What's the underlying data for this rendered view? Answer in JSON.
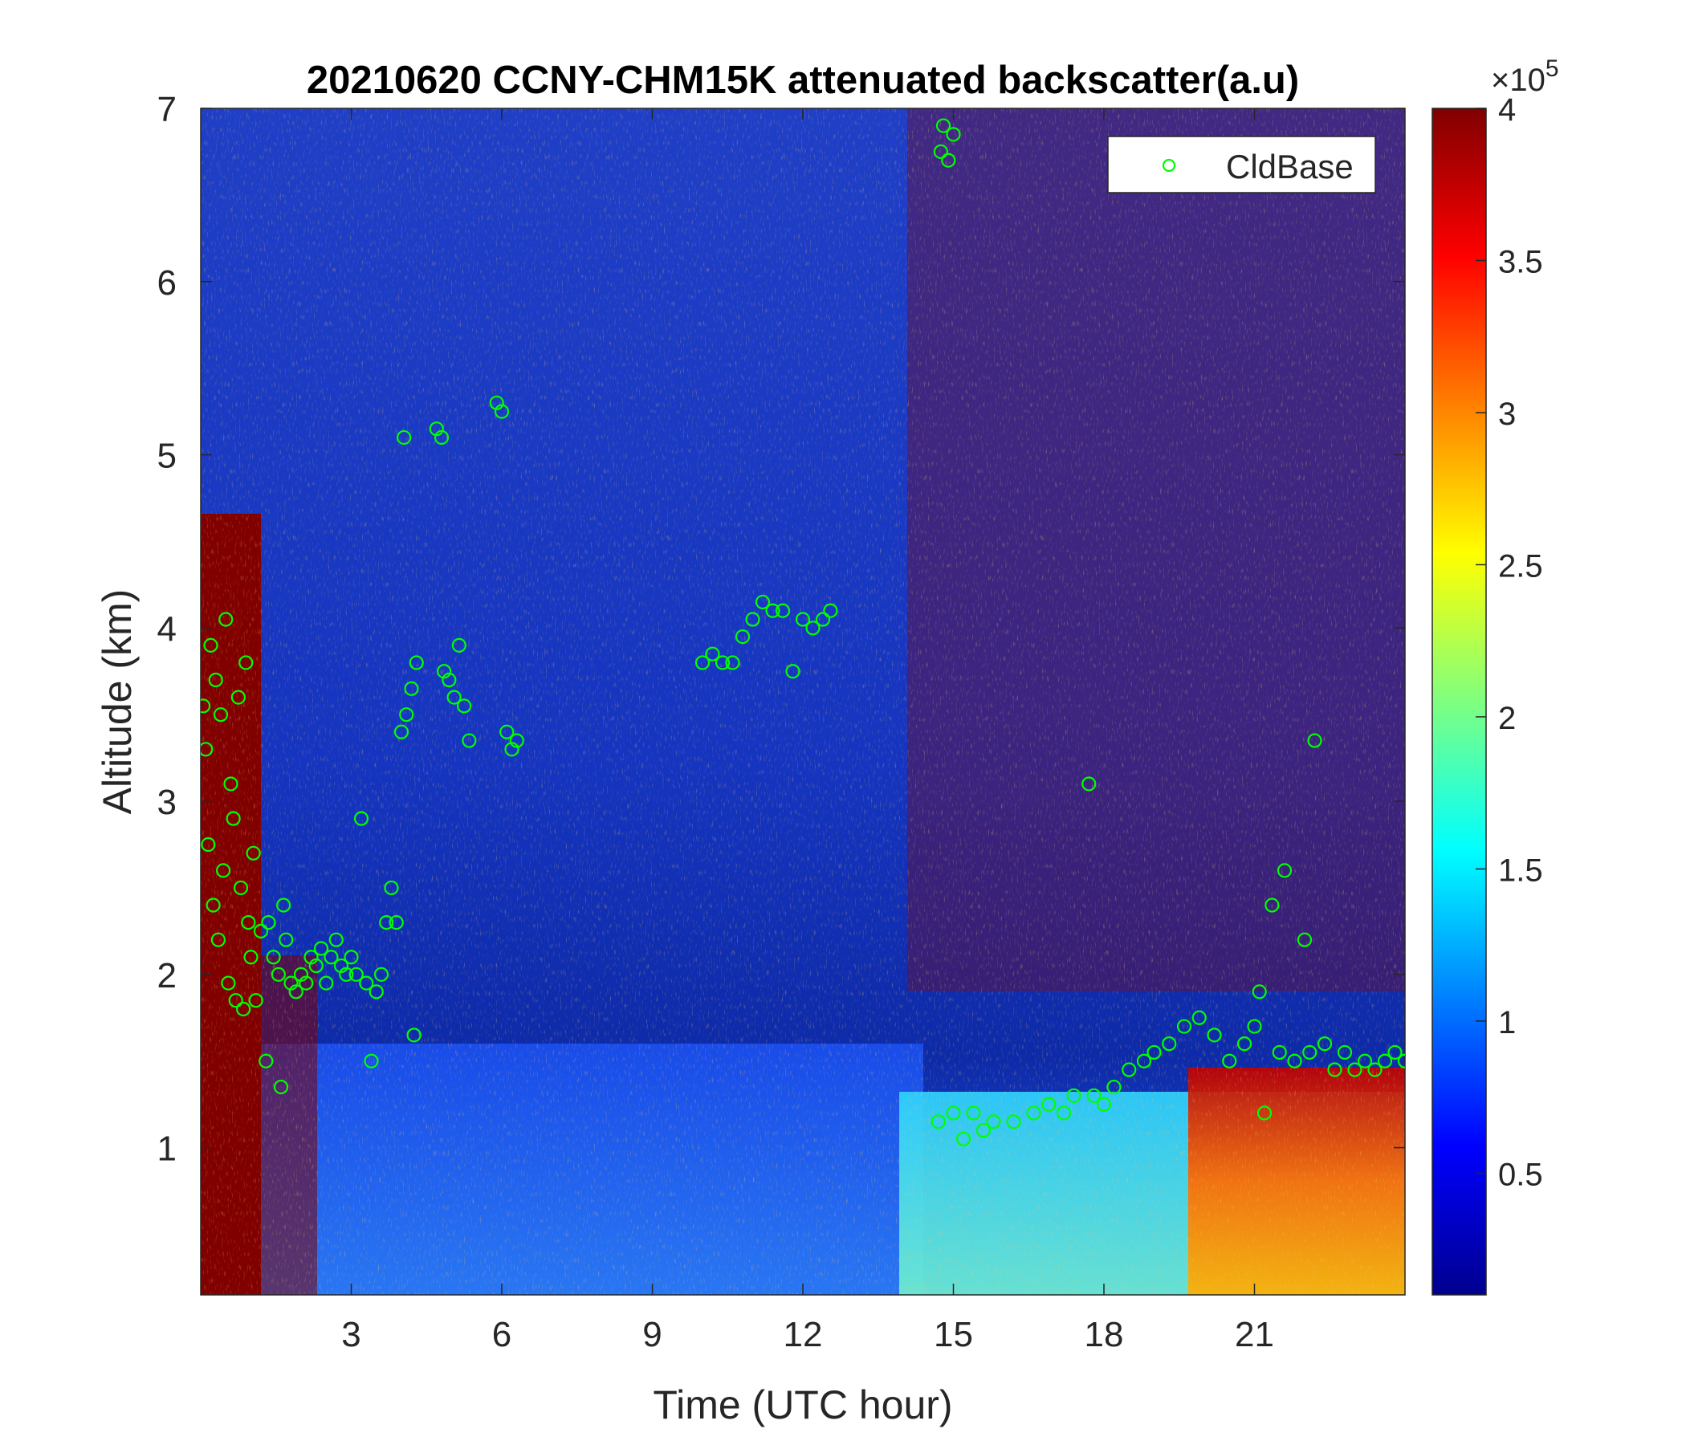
{
  "chart_data": {
    "type": "heatmap",
    "title": "20210620 CCNY-CHM15K attenuated backscatter(a.u)",
    "xlabel": "Time (UTC hour)",
    "ylabel": "Altitude (km)",
    "xlim": [
      0,
      24
    ],
    "ylim": [
      0.15,
      7
    ],
    "x_ticks": [
      3,
      6,
      9,
      12,
      15,
      18,
      21
    ],
    "x_tick_labels": [
      "3",
      "6",
      "9",
      "12",
      "15",
      "18",
      "21"
    ],
    "y_ticks": [
      1,
      2,
      3,
      4,
      5,
      6,
      7
    ],
    "y_tick_labels": [
      "1",
      "2",
      "3",
      "4",
      "5",
      "6",
      "7"
    ],
    "colormap": "jet",
    "colorbar": {
      "range": [
        0.1,
        4
      ],
      "ticks": [
        0.5,
        1,
        1.5,
        2,
        2.5,
        3,
        3.5,
        4
      ],
      "tick_labels": [
        "0.5",
        "1",
        "1.5",
        "2",
        "2.5",
        "3",
        "3.5",
        "4"
      ],
      "multiplier_base": "×10",
      "multiplier_exp": "5"
    },
    "legend": {
      "placement": "top-right",
      "entries": [
        "CldBase"
      ]
    },
    "series": [
      {
        "name": "CldBase",
        "marker": "circle",
        "color": "#00ff00",
        "points": [
          [
            0.05,
            3.55
          ],
          [
            0.1,
            3.3
          ],
          [
            0.15,
            2.75
          ],
          [
            0.2,
            3.9
          ],
          [
            0.25,
            2.4
          ],
          [
            0.3,
            3.7
          ],
          [
            0.35,
            2.2
          ],
          [
            0.4,
            3.5
          ],
          [
            0.45,
            2.6
          ],
          [
            0.5,
            4.05
          ],
          [
            0.55,
            1.95
          ],
          [
            0.6,
            3.1
          ],
          [
            0.65,
            2.9
          ],
          [
            0.7,
            1.85
          ],
          [
            0.75,
            3.6
          ],
          [
            0.8,
            2.5
          ],
          [
            0.85,
            1.8
          ],
          [
            0.9,
            3.8
          ],
          [
            0.95,
            2.3
          ],
          [
            1.0,
            2.1
          ],
          [
            1.05,
            2.7
          ],
          [
            1.1,
            1.85
          ],
          [
            1.2,
            2.25
          ],
          [
            1.3,
            1.5
          ],
          [
            1.35,
            2.3
          ],
          [
            1.45,
            2.1
          ],
          [
            1.55,
            2.0
          ],
          [
            1.6,
            1.35
          ],
          [
            1.65,
            2.4
          ],
          [
            1.7,
            2.2
          ],
          [
            1.8,
            1.95
          ],
          [
            1.9,
            1.9
          ],
          [
            2.0,
            2.0
          ],
          [
            2.1,
            1.95
          ],
          [
            2.2,
            2.1
          ],
          [
            2.3,
            2.05
          ],
          [
            2.4,
            2.15
          ],
          [
            2.5,
            1.95
          ],
          [
            2.6,
            2.1
          ],
          [
            2.7,
            2.2
          ],
          [
            2.8,
            2.05
          ],
          [
            2.9,
            2.0
          ],
          [
            3.0,
            2.1
          ],
          [
            3.1,
            2.0
          ],
          [
            3.2,
            2.9
          ],
          [
            3.3,
            1.95
          ],
          [
            3.4,
            1.5
          ],
          [
            3.5,
            1.9
          ],
          [
            3.6,
            2.0
          ],
          [
            3.7,
            2.3
          ],
          [
            3.8,
            2.5
          ],
          [
            3.9,
            2.3
          ],
          [
            4.0,
            3.4
          ],
          [
            4.05,
            5.1
          ],
          [
            4.1,
            3.5
          ],
          [
            4.2,
            3.65
          ],
          [
            4.25,
            1.65
          ],
          [
            4.3,
            3.8
          ],
          [
            4.7,
            5.15
          ],
          [
            4.8,
            5.1
          ],
          [
            4.85,
            3.75
          ],
          [
            4.95,
            3.7
          ],
          [
            5.05,
            3.6
          ],
          [
            5.15,
            3.9
          ],
          [
            5.25,
            3.55
          ],
          [
            5.35,
            3.35
          ],
          [
            5.9,
            5.3
          ],
          [
            6.0,
            5.25
          ],
          [
            6.1,
            3.4
          ],
          [
            6.2,
            3.3
          ],
          [
            6.3,
            3.35
          ],
          [
            10.0,
            3.8
          ],
          [
            10.2,
            3.85
          ],
          [
            10.4,
            3.8
          ],
          [
            10.6,
            3.8
          ],
          [
            10.8,
            3.95
          ],
          [
            11.0,
            4.05
          ],
          [
            11.2,
            4.15
          ],
          [
            11.4,
            4.1
          ],
          [
            11.6,
            4.1
          ],
          [
            11.8,
            3.75
          ],
          [
            12.0,
            4.05
          ],
          [
            12.2,
            4.0
          ],
          [
            12.4,
            4.05
          ],
          [
            12.55,
            4.1
          ],
          [
            14.75,
            6.75
          ],
          [
            14.8,
            6.9
          ],
          [
            14.9,
            6.7
          ],
          [
            15.0,
            6.85
          ],
          [
            14.7,
            1.15
          ],
          [
            15.0,
            1.2
          ],
          [
            15.2,
            1.05
          ],
          [
            15.4,
            1.2
          ],
          [
            15.6,
            1.1
          ],
          [
            15.8,
            1.15
          ],
          [
            16.2,
            1.15
          ],
          [
            16.6,
            1.2
          ],
          [
            16.9,
            1.25
          ],
          [
            17.2,
            1.2
          ],
          [
            17.4,
            1.3
          ],
          [
            17.7,
            3.1
          ],
          [
            17.8,
            1.3
          ],
          [
            18.0,
            1.25
          ],
          [
            18.2,
            1.35
          ],
          [
            18.5,
            1.45
          ],
          [
            18.8,
            1.5
          ],
          [
            19.0,
            1.55
          ],
          [
            19.3,
            1.6
          ],
          [
            19.6,
            1.7
          ],
          [
            19.9,
            1.75
          ],
          [
            20.2,
            1.65
          ],
          [
            20.5,
            1.5
          ],
          [
            20.8,
            1.6
          ],
          [
            21.0,
            1.7
          ],
          [
            21.1,
            1.9
          ],
          [
            21.2,
            1.2
          ],
          [
            21.35,
            2.4
          ],
          [
            21.5,
            1.55
          ],
          [
            21.6,
            2.6
          ],
          [
            21.8,
            1.5
          ],
          [
            22.0,
            2.2
          ],
          [
            22.1,
            1.55
          ],
          [
            22.2,
            3.35
          ],
          [
            22.4,
            1.6
          ],
          [
            22.6,
            1.45
          ],
          [
            22.8,
            1.55
          ],
          [
            23.0,
            1.45
          ],
          [
            23.2,
            1.5
          ],
          [
            23.4,
            1.45
          ],
          [
            23.6,
            1.5
          ],
          [
            23.8,
            1.55
          ],
          [
            24.0,
            1.5
          ]
        ]
      }
    ]
  }
}
